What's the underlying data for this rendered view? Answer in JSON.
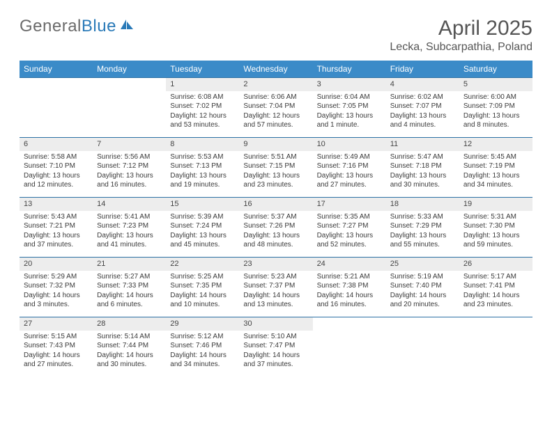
{
  "logo": {
    "word1": "General",
    "word2": "Blue"
  },
  "title": "April 2025",
  "location": "Lecka, Subcarpathia, Poland",
  "colors": {
    "header_bg": "#3b8bc8",
    "header_text": "#ffffff",
    "daynum_bg": "#ededed",
    "row_border": "#2a6fa3",
    "body_text": "#3a3a3a",
    "logo_gray": "#6b6b6b",
    "logo_blue": "#2a7ab8"
  },
  "weekdays": [
    "Sunday",
    "Monday",
    "Tuesday",
    "Wednesday",
    "Thursday",
    "Friday",
    "Saturday"
  ],
  "weeks": [
    [
      null,
      null,
      {
        "n": "1",
        "sr": "6:08 AM",
        "ss": "7:02 PM",
        "dl": "12 hours and 53 minutes."
      },
      {
        "n": "2",
        "sr": "6:06 AM",
        "ss": "7:04 PM",
        "dl": "12 hours and 57 minutes."
      },
      {
        "n": "3",
        "sr": "6:04 AM",
        "ss": "7:05 PM",
        "dl": "13 hours and 1 minute."
      },
      {
        "n": "4",
        "sr": "6:02 AM",
        "ss": "7:07 PM",
        "dl": "13 hours and 4 minutes."
      },
      {
        "n": "5",
        "sr": "6:00 AM",
        "ss": "7:09 PM",
        "dl": "13 hours and 8 minutes."
      }
    ],
    [
      {
        "n": "6",
        "sr": "5:58 AM",
        "ss": "7:10 PM",
        "dl": "13 hours and 12 minutes."
      },
      {
        "n": "7",
        "sr": "5:56 AM",
        "ss": "7:12 PM",
        "dl": "13 hours and 16 minutes."
      },
      {
        "n": "8",
        "sr": "5:53 AM",
        "ss": "7:13 PM",
        "dl": "13 hours and 19 minutes."
      },
      {
        "n": "9",
        "sr": "5:51 AM",
        "ss": "7:15 PM",
        "dl": "13 hours and 23 minutes."
      },
      {
        "n": "10",
        "sr": "5:49 AM",
        "ss": "7:16 PM",
        "dl": "13 hours and 27 minutes."
      },
      {
        "n": "11",
        "sr": "5:47 AM",
        "ss": "7:18 PM",
        "dl": "13 hours and 30 minutes."
      },
      {
        "n": "12",
        "sr": "5:45 AM",
        "ss": "7:19 PM",
        "dl": "13 hours and 34 minutes."
      }
    ],
    [
      {
        "n": "13",
        "sr": "5:43 AM",
        "ss": "7:21 PM",
        "dl": "13 hours and 37 minutes."
      },
      {
        "n": "14",
        "sr": "5:41 AM",
        "ss": "7:23 PM",
        "dl": "13 hours and 41 minutes."
      },
      {
        "n": "15",
        "sr": "5:39 AM",
        "ss": "7:24 PM",
        "dl": "13 hours and 45 minutes."
      },
      {
        "n": "16",
        "sr": "5:37 AM",
        "ss": "7:26 PM",
        "dl": "13 hours and 48 minutes."
      },
      {
        "n": "17",
        "sr": "5:35 AM",
        "ss": "7:27 PM",
        "dl": "13 hours and 52 minutes."
      },
      {
        "n": "18",
        "sr": "5:33 AM",
        "ss": "7:29 PM",
        "dl": "13 hours and 55 minutes."
      },
      {
        "n": "19",
        "sr": "5:31 AM",
        "ss": "7:30 PM",
        "dl": "13 hours and 59 minutes."
      }
    ],
    [
      {
        "n": "20",
        "sr": "5:29 AM",
        "ss": "7:32 PM",
        "dl": "14 hours and 3 minutes."
      },
      {
        "n": "21",
        "sr": "5:27 AM",
        "ss": "7:33 PM",
        "dl": "14 hours and 6 minutes."
      },
      {
        "n": "22",
        "sr": "5:25 AM",
        "ss": "7:35 PM",
        "dl": "14 hours and 10 minutes."
      },
      {
        "n": "23",
        "sr": "5:23 AM",
        "ss": "7:37 PM",
        "dl": "14 hours and 13 minutes."
      },
      {
        "n": "24",
        "sr": "5:21 AM",
        "ss": "7:38 PM",
        "dl": "14 hours and 16 minutes."
      },
      {
        "n": "25",
        "sr": "5:19 AM",
        "ss": "7:40 PM",
        "dl": "14 hours and 20 minutes."
      },
      {
        "n": "26",
        "sr": "5:17 AM",
        "ss": "7:41 PM",
        "dl": "14 hours and 23 minutes."
      }
    ],
    [
      {
        "n": "27",
        "sr": "5:15 AM",
        "ss": "7:43 PM",
        "dl": "14 hours and 27 minutes."
      },
      {
        "n": "28",
        "sr": "5:14 AM",
        "ss": "7:44 PM",
        "dl": "14 hours and 30 minutes."
      },
      {
        "n": "29",
        "sr": "5:12 AM",
        "ss": "7:46 PM",
        "dl": "14 hours and 34 minutes."
      },
      {
        "n": "30",
        "sr": "5:10 AM",
        "ss": "7:47 PM",
        "dl": "14 hours and 37 minutes."
      },
      null,
      null,
      null
    ]
  ],
  "labels": {
    "sunrise": "Sunrise: ",
    "sunset": "Sunset: ",
    "daylight": "Daylight: "
  }
}
